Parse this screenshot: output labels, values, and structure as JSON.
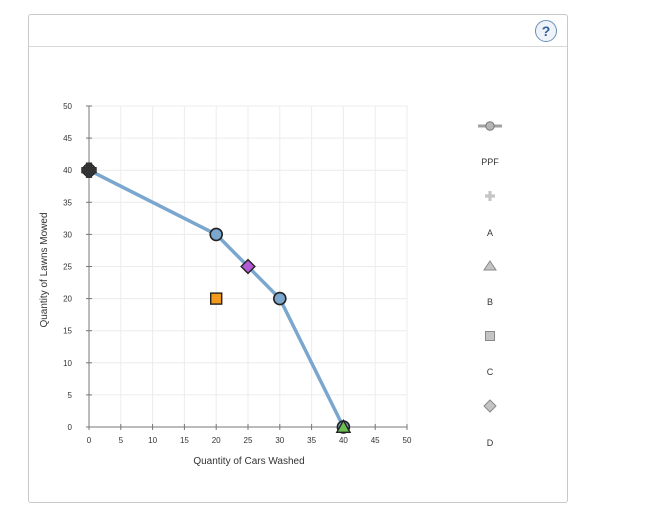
{
  "help": {
    "label": "?"
  },
  "chart_data": {
    "type": "line",
    "xlabel": "Quantity of Cars Washed",
    "ylabel": "Quantity of Lawns Mowed",
    "xlim": [
      0,
      50
    ],
    "ylim": [
      0,
      50
    ],
    "xticks": [
      0,
      5,
      10,
      15,
      20,
      25,
      30,
      35,
      40,
      45,
      50
    ],
    "yticks": [
      0,
      5,
      10,
      15,
      20,
      25,
      30,
      35,
      40,
      45,
      50
    ],
    "grid": true,
    "series": [
      {
        "name": "PPF",
        "marker": "circle",
        "color": "#7ba7cf",
        "points": [
          {
            "x": 0,
            "y": 40
          },
          {
            "x": 20,
            "y": 30
          },
          {
            "x": 30,
            "y": 20
          },
          {
            "x": 40,
            "y": 0
          }
        ]
      },
      {
        "name": "A",
        "marker": "plus",
        "color": "#333333",
        "points": [
          {
            "x": 0,
            "y": 40
          }
        ]
      },
      {
        "name": "B",
        "marker": "triangle",
        "color": "#6bbf4e",
        "points": [
          {
            "x": 40,
            "y": 0
          }
        ]
      },
      {
        "name": "C",
        "marker": "square",
        "color": "#f29a1c",
        "points": [
          {
            "x": 20,
            "y": 20
          }
        ]
      },
      {
        "name": "D",
        "marker": "diamond",
        "color": "#b35ad6",
        "points": [
          {
            "x": 25,
            "y": 25
          }
        ]
      }
    ],
    "legend_position": "right"
  }
}
